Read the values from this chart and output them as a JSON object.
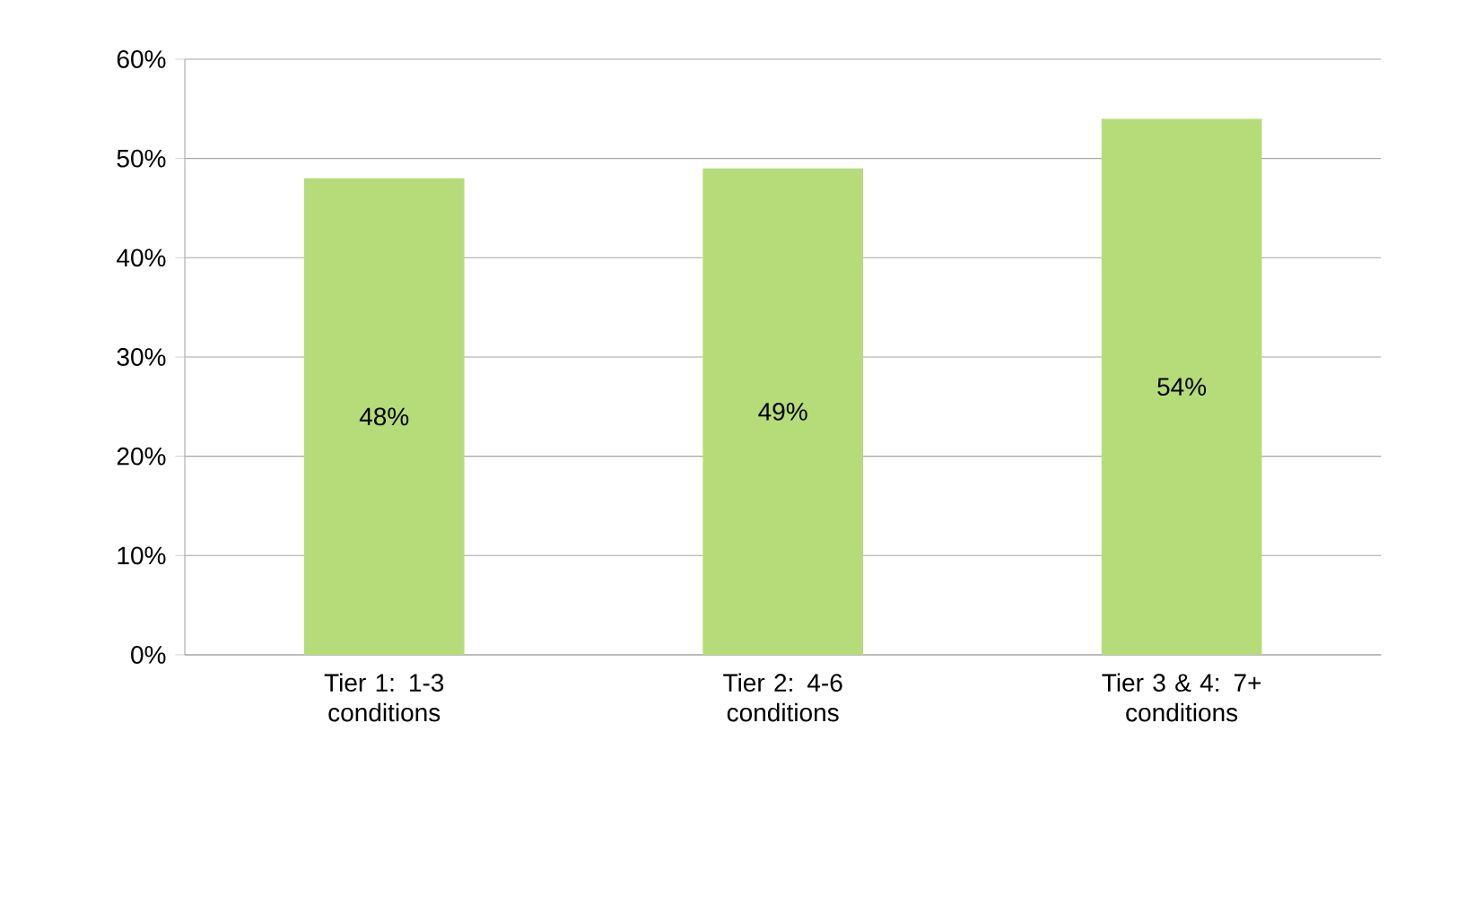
{
  "chart_data": {
    "type": "bar",
    "categories": [
      "Tier 1: 1-3 conditions",
      "Tier 2: 4-6 conditions",
      "Tier 3 & 4: 7+ conditions"
    ],
    "values": [
      48,
      49,
      54
    ],
    "value_labels": [
      "48%",
      "49%",
      "54%"
    ],
    "color": "#b5dc78",
    "ylim": [
      0,
      60
    ],
    "yticks": [
      {
        "value": 0,
        "label": "0%"
      },
      {
        "value": 10,
        "label": "10%"
      },
      {
        "value": 20,
        "label": "20%"
      },
      {
        "value": 30,
        "label": "30%"
      },
      {
        "value": 40,
        "label": "40%"
      },
      {
        "value": 50,
        "label": "50%"
      },
      {
        "value": 60,
        "label": "60%"
      }
    ],
    "grid": "y"
  }
}
